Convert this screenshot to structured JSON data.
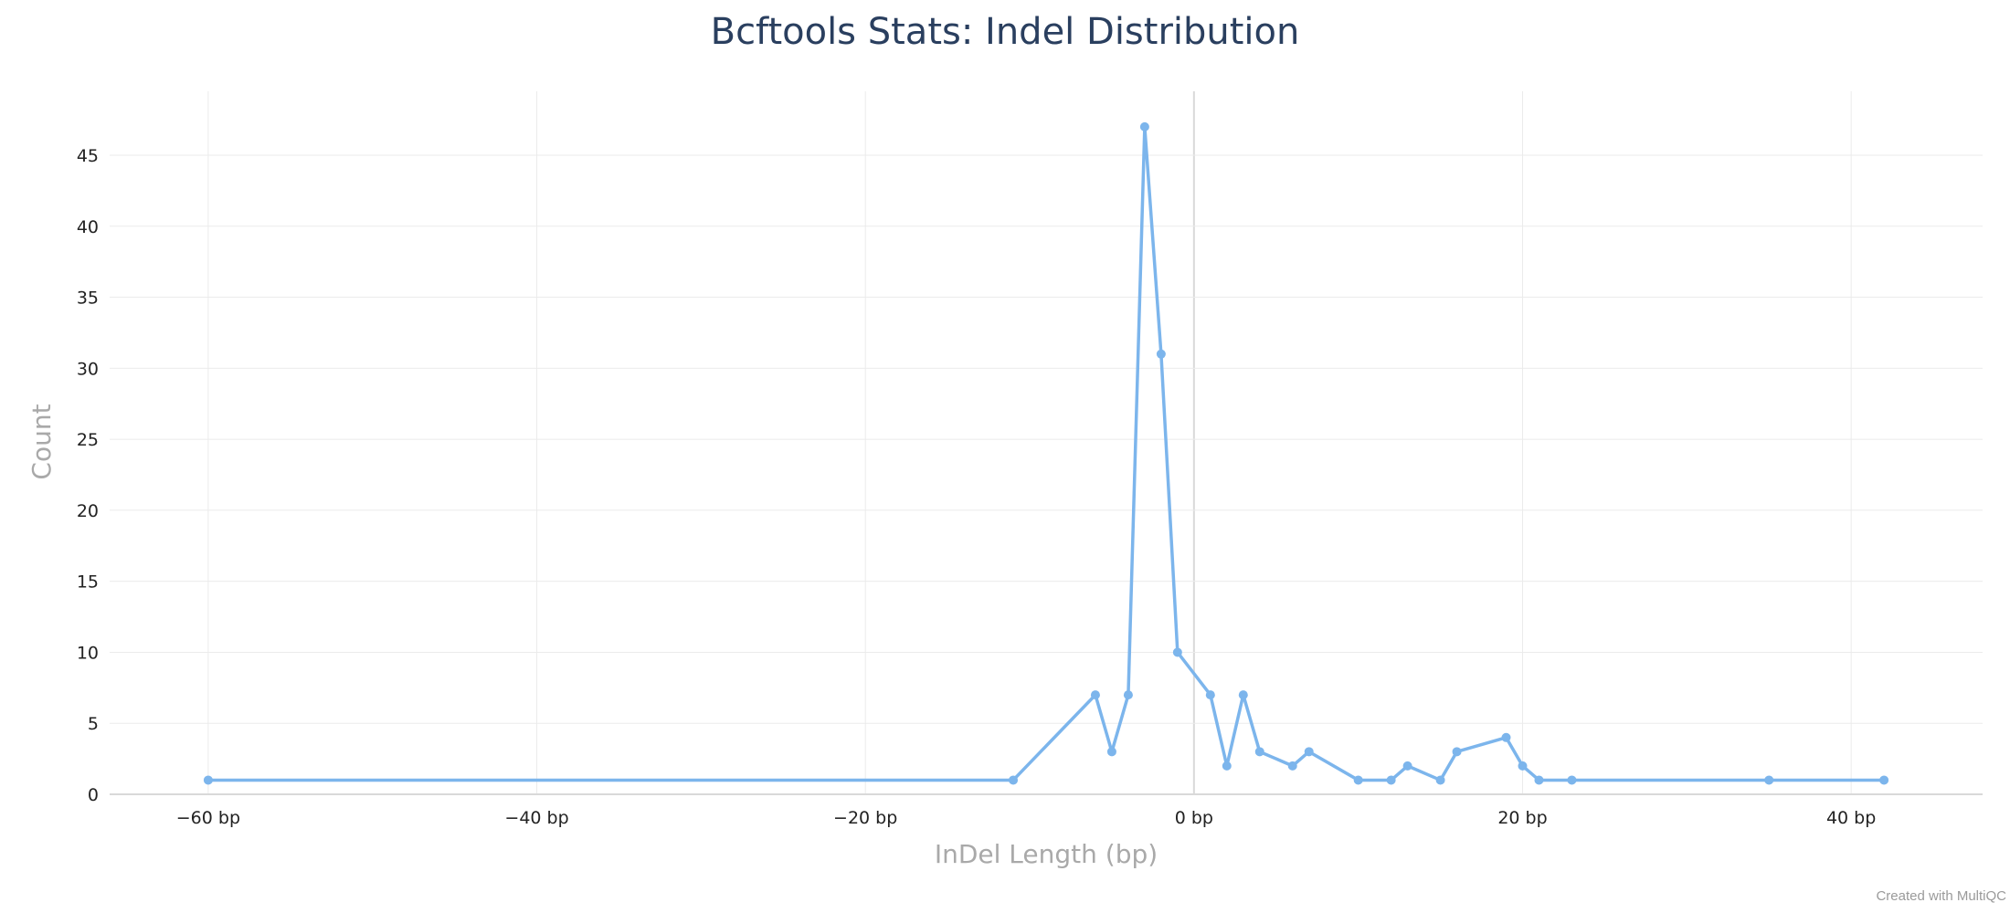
{
  "chart_data": {
    "type": "line",
    "title": "Bcftools Stats: Indel Distribution",
    "xlabel": "InDel Length (bp)",
    "ylabel": "Count",
    "x_tick_suffix": " bp",
    "xlim": [
      -66,
      48
    ],
    "ylim": [
      0,
      49.5
    ],
    "x_ticks": [
      -60,
      -40,
      -20,
      0,
      20,
      40
    ],
    "y_ticks": [
      0,
      5,
      10,
      15,
      20,
      25,
      30,
      35,
      40,
      45
    ],
    "grid": true,
    "legend": "none",
    "series": [
      {
        "color": "#7cb5ec",
        "points": [
          [
            -60,
            1
          ],
          [
            -11,
            1
          ],
          [
            -6,
            7
          ],
          [
            -5,
            3
          ],
          [
            -4,
            7
          ],
          [
            -3,
            47
          ],
          [
            -2,
            31
          ],
          [
            -1,
            10
          ],
          [
            1,
            7
          ],
          [
            2,
            2
          ],
          [
            3,
            7
          ],
          [
            4,
            3
          ],
          [
            6,
            2
          ],
          [
            7,
            3
          ],
          [
            10,
            1
          ],
          [
            12,
            1
          ],
          [
            13,
            2
          ],
          [
            15,
            1
          ],
          [
            16,
            3
          ],
          [
            19,
            4
          ],
          [
            20,
            2
          ],
          [
            21,
            1
          ],
          [
            23,
            1
          ],
          [
            35,
            1
          ],
          [
            42,
            1
          ]
        ]
      }
    ],
    "credit": "Created with MultiQC"
  },
  "colors": {
    "title": "#2a3f5f",
    "axis_title": "#a9a9a9",
    "grid": "#ebebeb",
    "zero_line": "#d9d9d9",
    "series": "#7cb5ec"
  }
}
